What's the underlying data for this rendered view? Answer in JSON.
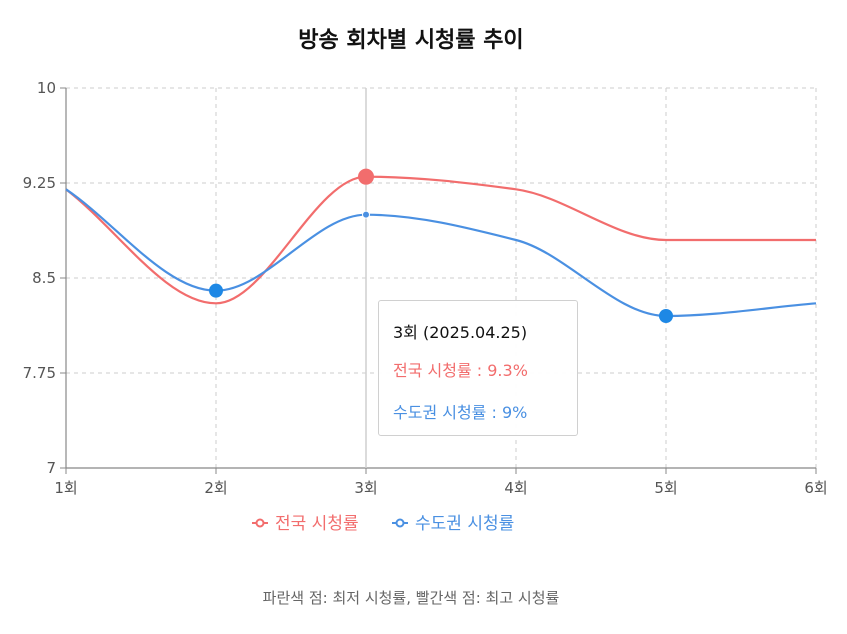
{
  "chart_data": {
    "type": "line",
    "title": "방송 회차별 시청률 추이",
    "categories": [
      "1회",
      "2회",
      "3회",
      "4회",
      "5회",
      "6회"
    ],
    "series": [
      {
        "name": "전국 시청률",
        "color": "#f26d6d",
        "values": [
          9.2,
          8.3,
          9.3,
          9.2,
          8.8,
          8.8
        ]
      },
      {
        "name": "수도권 시청률",
        "color": "#4a90e2",
        "values": [
          9.2,
          8.4,
          9.0,
          8.8,
          8.2,
          8.3
        ]
      }
    ],
    "ylim": [
      7,
      10
    ],
    "yticks": [
      "7",
      "7.75",
      "8.5",
      "9.25",
      "10"
    ],
    "grid": true,
    "legend": "bottom",
    "highlights": {
      "max": {
        "series": 0,
        "index": 2,
        "color": "#f26d6d"
      },
      "min_points": [
        {
          "series": 1,
          "index": 1,
          "color": "#1e88e5"
        },
        {
          "series": 1,
          "index": 4,
          "color": "#1e88e5"
        }
      ]
    },
    "tooltip": {
      "title": "3회 (2025.04.25)",
      "rows": [
        {
          "label": "전국 시청률 : 9.3%",
          "color": "#f26d6d"
        },
        {
          "label": "수도권 시청률 : 9%",
          "color": "#4a90e2"
        }
      ]
    },
    "footnote": "파란색 점: 최저 시청률, 빨간색 점: 최고 시청률"
  }
}
